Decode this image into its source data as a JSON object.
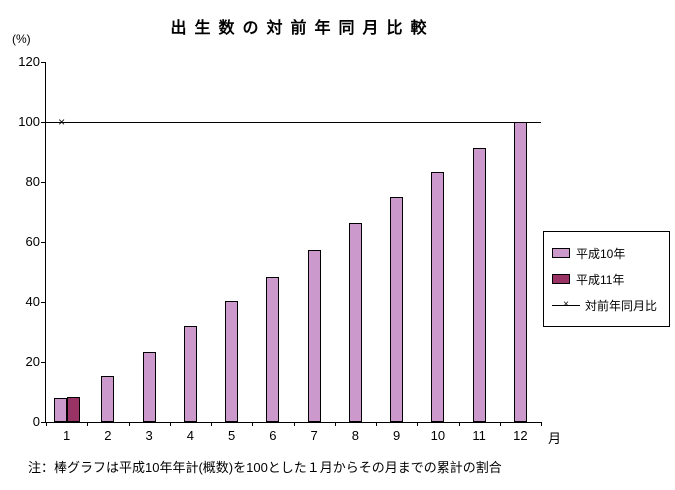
{
  "title": "出生数の対前年同月比較",
  "ylabel_unit": "(%)",
  "xlabel_unit": "月",
  "note": "注：棒グラフは平成10年年計(概数)を100とした１月からその月までの累計の割合",
  "colors": {
    "h10_bar": "#cc99cc",
    "h11_bar": "#993366",
    "line": "#000000"
  },
  "legend": [
    {
      "label": "平成10年",
      "type": "box",
      "color": "#cc99cc"
    },
    {
      "label": "平成11年",
      "type": "box",
      "color": "#993366"
    },
    {
      "label": "対前年同月比",
      "type": "line",
      "color": "#000000"
    }
  ],
  "chart_data": {
    "type": "bar",
    "title": "出生数の対前年同月比較",
    "xlabel": "月",
    "ylabel": "(%)",
    "ylim": [
      0,
      120
    ],
    "yticks": [
      0,
      20,
      40,
      60,
      80,
      100,
      120
    ],
    "grid": false,
    "legend_position": "right",
    "refline": 100,
    "categories": [
      "1",
      "2",
      "3",
      "4",
      "5",
      "6",
      "7",
      "8",
      "9",
      "10",
      "11",
      "12"
    ],
    "series": [
      {
        "name": "平成10年",
        "kind": "bar",
        "color": "#cc99cc",
        "values": [
          8,
          15.5,
          23.5,
          32,
          40.5,
          48.5,
          57.5,
          66.5,
          75,
          83.5,
          91.5,
          100
        ]
      },
      {
        "name": "平成11年",
        "kind": "bar",
        "color": "#993366",
        "values": [
          8.2,
          null,
          null,
          null,
          null,
          null,
          null,
          null,
          null,
          null,
          null,
          null
        ]
      },
      {
        "name": "対前年同月比",
        "kind": "line",
        "marker": "x",
        "color": "#000000",
        "values": [
          100,
          null,
          null,
          null,
          null,
          null,
          null,
          null,
          null,
          null,
          null,
          null
        ]
      }
    ]
  }
}
